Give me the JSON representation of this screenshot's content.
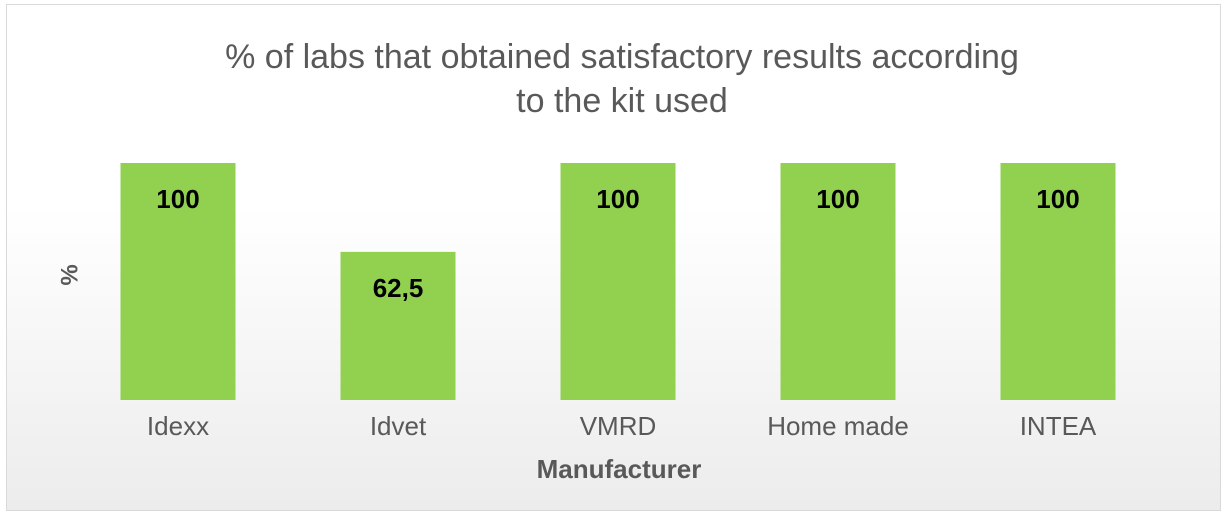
{
  "chart_data": {
    "type": "bar",
    "title": "% of labs that obtained satisfactory results according to the kit used",
    "x_label": "Manufacturer",
    "y_label": "%",
    "categories": [
      "Idexx",
      "Idvet",
      "VMRD",
      "Home made",
      "INTEA"
    ],
    "values": [
      100,
      62.5,
      100,
      100,
      100
    ],
    "value_labels": [
      "100",
      "62,5",
      "100",
      "100",
      "100"
    ],
    "color": "#92d050",
    "ylim": [
      0,
      100
    ]
  }
}
